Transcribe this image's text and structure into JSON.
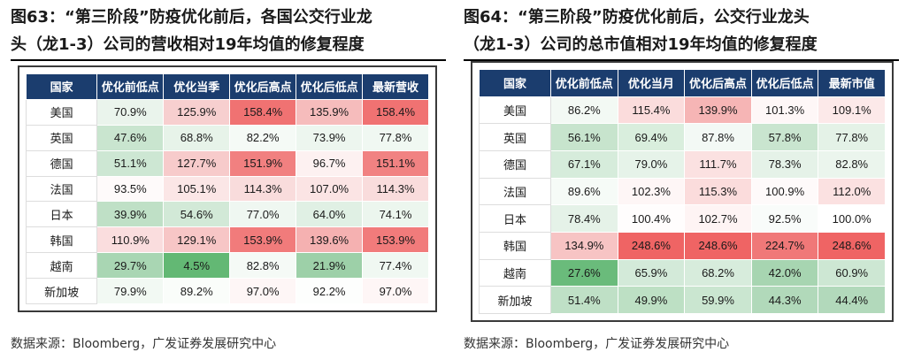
{
  "left": {
    "title_line1": "图63：“第三阶段”防疫优化前后，各国公交行业龙",
    "title_line2": "头（龙1-3）公司的营收相对19年均值的修复程度",
    "headers": [
      "国家",
      "优化前低点",
      "优化当季",
      "优化后高点",
      "优化后低点",
      "最新营收"
    ],
    "rows": [
      {
        "country": "美国",
        "values": [
          "70.9%",
          "125.9%",
          "158.4%",
          "135.9%",
          "158.4%"
        ],
        "colors": [
          "#eaf4ec",
          "#f7cfcf",
          "#f07272",
          "#f6bcbc",
          "#f07272"
        ]
      },
      {
        "country": "英国",
        "values": [
          "47.6%",
          "68.8%",
          "82.2%",
          "73.9%",
          "77.8%"
        ],
        "colors": [
          "#c9e5cf",
          "#e7f3e9",
          "#f5faf6",
          "#edf6ef",
          "#f0f8f2"
        ]
      },
      {
        "country": "德国",
        "values": [
          "51.1%",
          "127.7%",
          "151.9%",
          "96.7%",
          "151.1%"
        ],
        "colors": [
          "#cde7d3",
          "#f7cbcb",
          "#f18080",
          "#fdf1f1",
          "#f18282"
        ]
      },
      {
        "country": "法国",
        "values": [
          "93.5%",
          "105.1%",
          "114.3%",
          "107.0%",
          "114.3%"
        ],
        "colors": [
          "#fefafa",
          "#fbe6e6",
          "#f9dcdc",
          "#fbe4e4",
          "#f9dcdc"
        ]
      },
      {
        "country": "日本",
        "values": [
          "39.9%",
          "54.6%",
          "77.0%",
          "64.0%",
          "74.1%"
        ],
        "colors": [
          "#bfe0c6",
          "#d2e9d7",
          "#eff7f1",
          "#e0f0e4",
          "#ecf6ee"
        ]
      },
      {
        "country": "韩国",
        "values": [
          "110.9%",
          "129.1%",
          "153.9%",
          "139.6%",
          "153.9%"
        ],
        "colors": [
          "#faddde",
          "#f7c6c6",
          "#f17b7b",
          "#f5b1b1",
          "#f17b7b"
        ]
      },
      {
        "country": "越南",
        "values": [
          "29.7%",
          "4.5%",
          "82.8%",
          "21.9%",
          "77.4%"
        ],
        "colors": [
          "#a9d6b3",
          "#63b874",
          "#f5faf6",
          "#9dd0a8",
          "#f0f8f2"
        ]
      },
      {
        "country": "新加坡",
        "values": [
          "79.9%",
          "89.2%",
          "97.0%",
          "92.2%",
          "97.0%"
        ],
        "colors": [
          "#f2f9f3",
          "#fafdfa",
          "#fef6f6",
          "#fdfefd",
          "#fef6f6"
        ]
      }
    ],
    "source": "数据来源：Bloomberg，广发证券发展研究中心"
  },
  "right": {
    "title_line1": "图64：“第三阶段”防疫优化前后，公交行业龙头",
    "title_line2": "（龙1-3）公司的总市值相对19年均值的修复程度",
    "headers": [
      "国家",
      "优化前低点",
      "优化当月",
      "优化后高点",
      "优化后低点",
      "最新市值"
    ],
    "rows": [
      {
        "country": "美国",
        "values": [
          "86.2%",
          "115.4%",
          "139.9%",
          "101.3%",
          "109.1%"
        ],
        "colors": [
          "#f3f9f4",
          "#fbdcdc",
          "#f6b5b5",
          "#fef7f7",
          "#fce9e9"
        ]
      },
      {
        "country": "英国",
        "values": [
          "56.1%",
          "69.4%",
          "87.8%",
          "57.8%",
          "77.8%"
        ],
        "colors": [
          "#c7e4cd",
          "#d9eedd",
          "#f3f9f5",
          "#c9e5cf",
          "#e4f2e7"
        ]
      },
      {
        "country": "德国",
        "values": [
          "67.1%",
          "79.0%",
          "111.7%",
          "78.3%",
          "82.8%"
        ],
        "colors": [
          "#d6ecdb",
          "#e6f3e9",
          "#fbe1e1",
          "#e5f2e8",
          "#ebf5ed"
        ]
      },
      {
        "country": "法国",
        "values": [
          "89.6%",
          "102.3%",
          "115.3%",
          "100.9%",
          "112.0%"
        ],
        "colors": [
          "#f6fbf7",
          "#fef6f6",
          "#fbdcdc",
          "#fefafa",
          "#fbe1e1"
        ]
      },
      {
        "country": "日本",
        "values": [
          "78.4%",
          "100.4%",
          "102.7%",
          "92.5%",
          "100.0%"
        ],
        "colors": [
          "#e5f2e8",
          "#fffdfd",
          "#fef4f4",
          "#f9fcfa",
          "#ffffff"
        ]
      },
      {
        "country": "韩国",
        "values": [
          "134.9%",
          "248.6%",
          "248.6%",
          "224.7%",
          "248.6%"
        ],
        "colors": [
          "#f7c4c4",
          "#ef6464",
          "#ef6464",
          "#f07878",
          "#ef6464"
        ]
      },
      {
        "country": "越南",
        "values": [
          "27.6%",
          "65.9%",
          "68.2%",
          "42.0%",
          "60.9%"
        ],
        "colors": [
          "#6abb7b",
          "#d3ead9",
          "#d7ecdc",
          "#a7d5b1",
          "#cde7d3"
        ]
      },
      {
        "country": "新加坡",
        "values": [
          "51.4%",
          "49.9%",
          "59.9%",
          "44.3%",
          "44.4%"
        ],
        "colors": [
          "#bfe0c6",
          "#bde0c4",
          "#cae6d0",
          "#b1d9ba",
          "#b2d9bb"
        ]
      }
    ],
    "source": "数据来源：Bloomberg，广发证券发展研究中心"
  }
}
